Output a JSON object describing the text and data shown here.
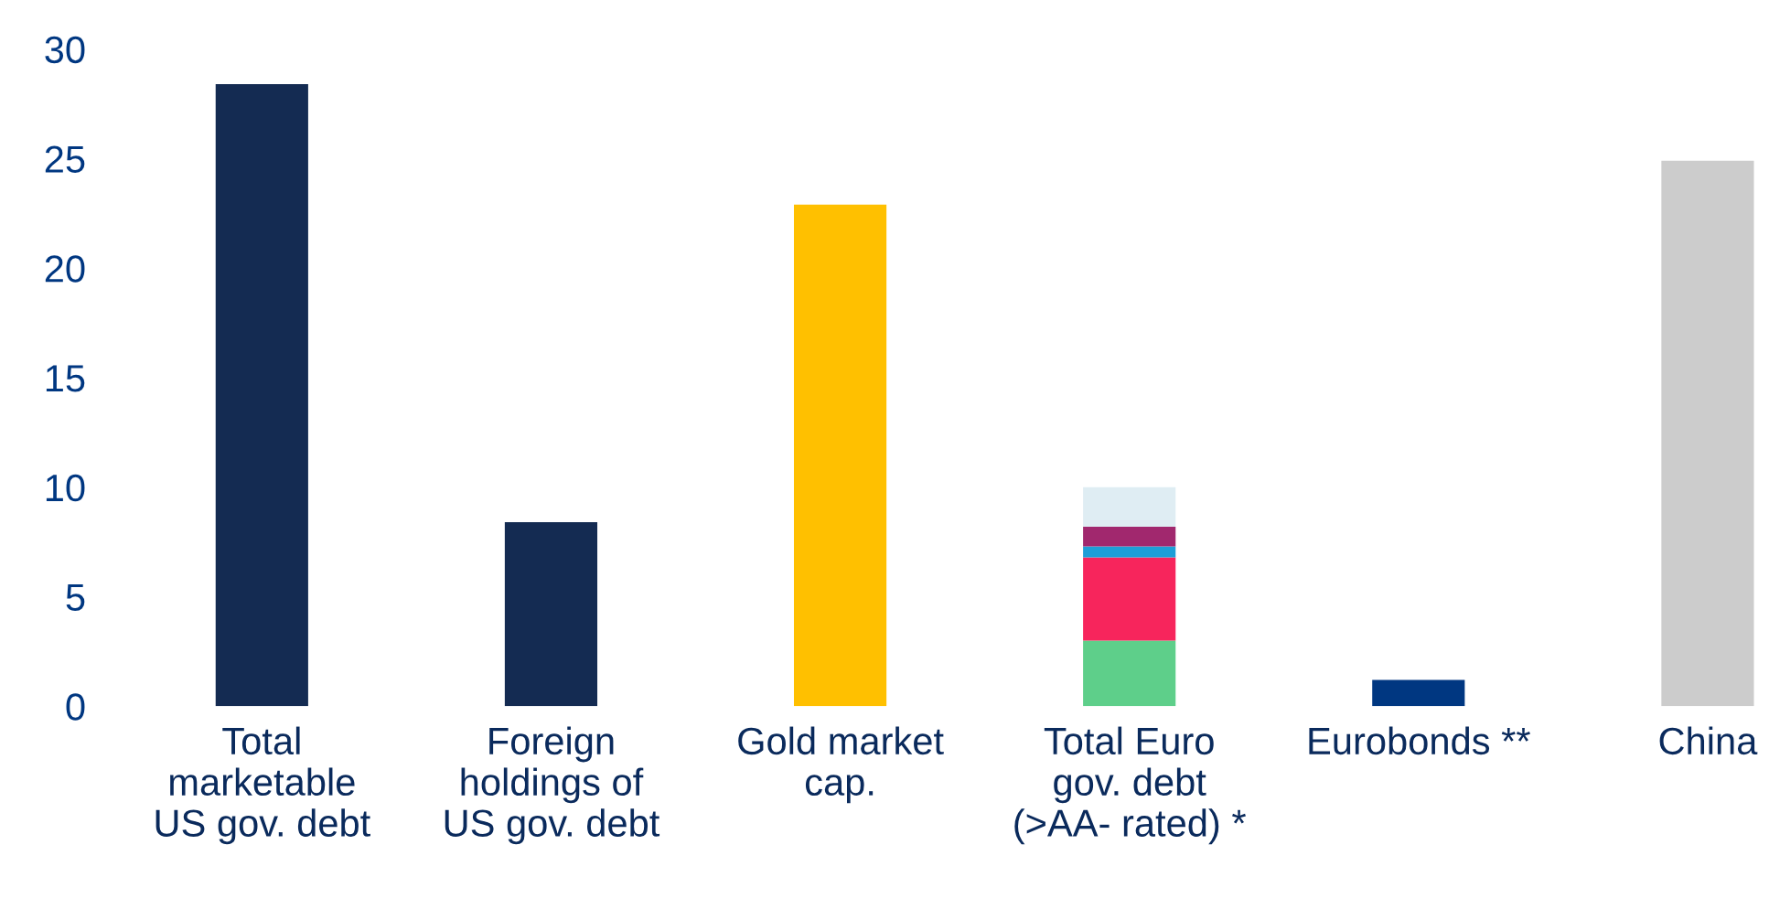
{
  "chart_data": {
    "type": "bar",
    "stacked": true,
    "categories": [
      "Total\nmarketable\nUS gov. debt",
      "Foreign\nholdings of\nUS gov. debt",
      "Gold market\ncap.",
      "Total Euro\ngov. debt\n(>AA- rated) *",
      "Eurobonds **",
      "China"
    ],
    "series": [
      {
        "values": [
          28.4,
          8.4,
          22.9,
          3.0,
          1.2,
          24.9
        ],
        "colors": [
          "#142b52",
          "#142b52",
          "#ffc000",
          "#5ecf8a",
          "#003781",
          "#cccccc"
        ]
      },
      {
        "color": "#f7255c",
        "values": [
          null,
          null,
          null,
          3.8,
          null,
          null
        ]
      },
      {
        "color": "#1e9fd8",
        "values": [
          null,
          null,
          null,
          0.5,
          null,
          null
        ]
      },
      {
        "color": "#a1286e",
        "values": [
          null,
          null,
          null,
          0.9,
          null,
          null
        ]
      },
      {
        "color": "#dfedf3",
        "values": [
          null,
          null,
          null,
          1.8,
          null,
          null
        ]
      }
    ],
    "ylim": [
      0,
      30
    ],
    "yticks": [
      0,
      5,
      10,
      15,
      20,
      25,
      30
    ],
    "grid": false
  }
}
